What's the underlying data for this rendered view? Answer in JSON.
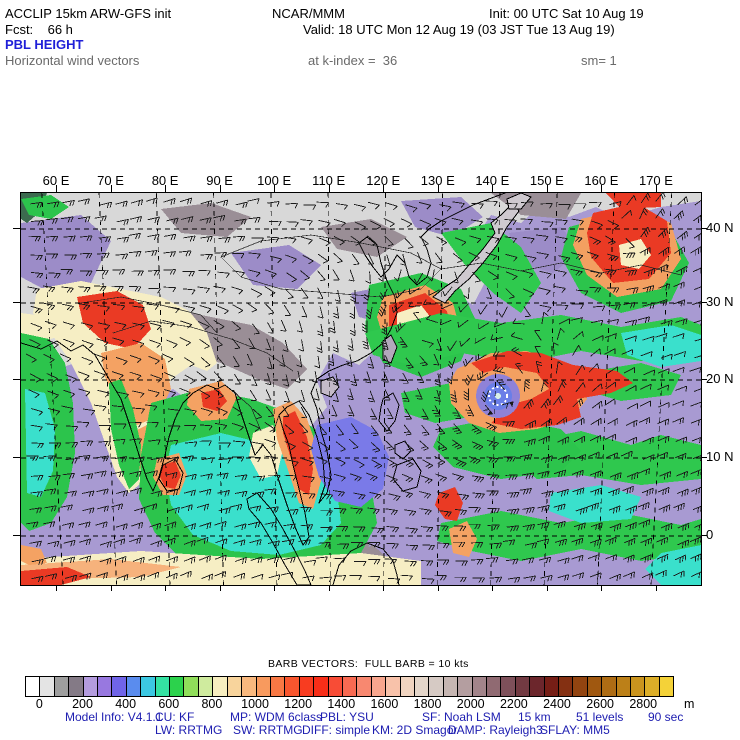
{
  "header": {
    "app": "ACCLIP 15km ARW-GFS init",
    "org": "NCAR/MMM",
    "init": "Init: 00 UTC Sat 10 Aug 19",
    "fcst": "Fcst:    66 h",
    "valid": "Valid: 18 UTC Mon 12 Aug 19 (03 JST Tue 13 Aug 19)",
    "title": "PBL HEIGHT",
    "field_note": "Horizontal wind vectors",
    "level_note": "at k-index =  36",
    "smooth_note": "sm= 1",
    "title_color": "#1f1fd8",
    "note_color": "#6a6a6a"
  },
  "map": {
    "top_axis_labels": [
      "60 E",
      "70 E",
      "80 E",
      "90 E",
      "100 E",
      "110 E",
      "120 E",
      "130 E",
      "140 E",
      "150 E",
      "160 E",
      "170 E"
    ],
    "right_axis_labels": [
      "40 N",
      "30 N",
      "20 N",
      "10 N",
      "0"
    ]
  },
  "barb_note": {
    "text": "BARB VECTORS:  FULL BARB = 10 kts"
  },
  "colorbar": {
    "unit": "m",
    "tick_labels": [
      "0",
      "200",
      "400",
      "600",
      "800",
      "1000",
      "1200",
      "1400",
      "1600",
      "1800",
      "2000",
      "2200",
      "2400",
      "2600",
      "2800"
    ],
    "colors": [
      "#ffffff",
      "#e4e4e4",
      "#9e9e9e",
      "#847a86",
      "#b49cde",
      "#9878e0",
      "#7064e8",
      "#5a8cee",
      "#3cc8e2",
      "#34e2a2",
      "#2cd24c",
      "#90de5a",
      "#cfeb9e",
      "#f7eec0",
      "#f8d49c",
      "#f8b87e",
      "#f89a5e",
      "#f87844",
      "#f8562e",
      "#f83c20",
      "#f82e18",
      "#f84c36",
      "#f86a52",
      "#f88870",
      "#f8a68e",
      "#f8c2aa",
      "#f0d4c0",
      "#e4d6ca",
      "#d6cac4",
      "#c6b6b2",
      "#b49ea0",
      "#a2848a",
      "#906a72",
      "#7e505a",
      "#723a42",
      "#6c262c",
      "#761e16",
      "#843012",
      "#924410",
      "#a05810",
      "#ae6c14",
      "#bc8018",
      "#ca941e",
      "#dcae28",
      "#f4d238"
    ]
  },
  "model_info": {
    "color": "#1c1cb0",
    "line1": [
      "Model Info: V4.1.1",
      "CU: KF",
      "MP: WDM 6class",
      "PBL: YSU",
      "SF: Noah LSM",
      "15 km",
      "51 levels",
      "90 sec"
    ],
    "line2": [
      "LW: RRTMG",
      "SW: RRTMG",
      "DIFF: simple",
      "KM: 2D Smagor",
      "DAMP: Rayleigh3",
      "SFLAY: MM5"
    ]
  }
}
